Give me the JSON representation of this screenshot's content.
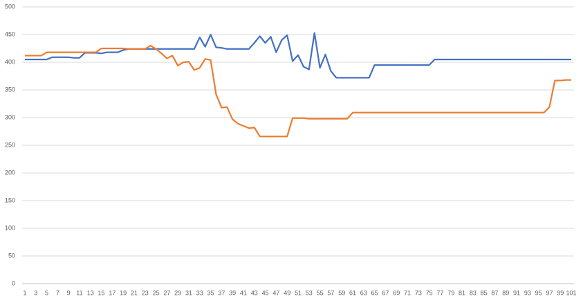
{
  "chart_data": {
    "type": "line",
    "categories": [
      1,
      null,
      3,
      null,
      5,
      null,
      7,
      null,
      9,
      null,
      11,
      null,
      13,
      null,
      15,
      null,
      17,
      null,
      19,
      null,
      21,
      null,
      23,
      null,
      25,
      null,
      27,
      null,
      29,
      null,
      31,
      null,
      33,
      null,
      35,
      null,
      37,
      null,
      39,
      null,
      41,
      null,
      43,
      null,
      45,
      null,
      47,
      null,
      49,
      null,
      51,
      null,
      53,
      null,
      55,
      null,
      57,
      null,
      59,
      null,
      61,
      null,
      63,
      null,
      65,
      null,
      67,
      null,
      69,
      null,
      71,
      null,
      73,
      null,
      75,
      null,
      77,
      null,
      79,
      null,
      81,
      null,
      83,
      null,
      85,
      null,
      87,
      null,
      89,
      null,
      91,
      null,
      93,
      null,
      95,
      null,
      97,
      null,
      99,
      null,
      101
    ],
    "series": [
      {
        "color": "#4472c4",
        "values": [
          405,
          405,
          405,
          405,
          405,
          409,
          409,
          409,
          409,
          408,
          408,
          417,
          417,
          417,
          416,
          418,
          418,
          418,
          422,
          424,
          424,
          424,
          424,
          424,
          424,
          424,
          424,
          424,
          424,
          424,
          424,
          424,
          445,
          428,
          450,
          427,
          426,
          424,
          424,
          424,
          424,
          424,
          435,
          447,
          435,
          446,
          418,
          440,
          449,
          402,
          413,
          392,
          387,
          453,
          390,
          414,
          384,
          372,
          372,
          372,
          372,
          372,
          372,
          372,
          395,
          395,
          395,
          395,
          395,
          395,
          395,
          395,
          395,
          395,
          395,
          405,
          405,
          405,
          405,
          405,
          405,
          405,
          405,
          405,
          405,
          405,
          405,
          405,
          405,
          405,
          405,
          405,
          405,
          405,
          405,
          405,
          405,
          405,
          405,
          405,
          405
        ]
      },
      {
        "color": "#ed7d31",
        "values": [
          412,
          412,
          412,
          412,
          418,
          418,
          418,
          418,
          418,
          418,
          418,
          418,
          418,
          418,
          425,
          425,
          425,
          425,
          425,
          424,
          424,
          424,
          424,
          430,
          424,
          416,
          407,
          412,
          394,
          400,
          401,
          386,
          390,
          406,
          404,
          342,
          318,
          319,
          297,
          289,
          285,
          281,
          282,
          266,
          266,
          266,
          266,
          266,
          266,
          299,
          299,
          299,
          298,
          298,
          298,
          298,
          298,
          298,
          298,
          298,
          309,
          309,
          309,
          309,
          309,
          309,
          309,
          309,
          309,
          309,
          309,
          309,
          309,
          309,
          309,
          309,
          309,
          309,
          309,
          309,
          309,
          309,
          309,
          309,
          309,
          309,
          309,
          309,
          309,
          309,
          309,
          309,
          309,
          309,
          309,
          309,
          319,
          367,
          367,
          368,
          368
        ]
      }
    ],
    "ylim": [
      0,
      500
    ],
    "yticks": [
      0,
      50,
      100,
      150,
      200,
      250,
      300,
      350,
      400,
      450,
      500
    ],
    "grid": true
  }
}
